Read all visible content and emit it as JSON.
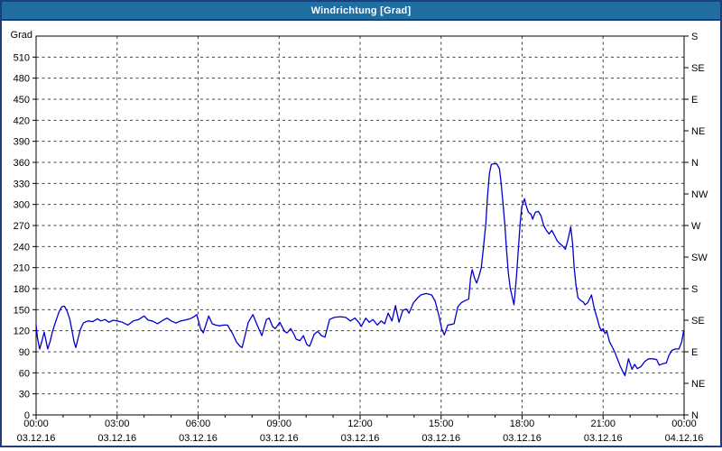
{
  "window": {
    "title": "Windrichtung [Grad]"
  },
  "colors": {
    "title_bar": "#1F6FA3",
    "window_border": "#1C3E7C",
    "line": "#0000CD",
    "grid": "#404040",
    "axis": "#000000",
    "title_text": "#FFFFFF",
    "label_text": "#000000",
    "background": "#FFFFFF"
  },
  "chart_data": {
    "type": "line",
    "title": "Windrichtung [Grad]",
    "grid": {
      "horizontal_step_deg": 30,
      "vertical_step_hours": 3,
      "style": "dashed"
    },
    "legend": "none",
    "y_axis": {
      "label": "Grad",
      "min": 0,
      "max": 540,
      "tick_step": 30,
      "tick_labels": [
        "0",
        "30",
        "60",
        "90",
        "120",
        "150",
        "180",
        "210",
        "240",
        "270",
        "300",
        "330",
        "360",
        "390",
        "420",
        "450",
        "480",
        "510"
      ]
    },
    "right_axis": {
      "tick_step_deg": 45,
      "ticks": [
        {
          "deg": 0,
          "label": "N"
        },
        {
          "deg": 45,
          "label": "NE"
        },
        {
          "deg": 90,
          "label": "E"
        },
        {
          "deg": 135,
          "label": "SE"
        },
        {
          "deg": 180,
          "label": "S"
        },
        {
          "deg": 225,
          "label": "SW"
        },
        {
          "deg": 270,
          "label": "W"
        },
        {
          "deg": 315,
          "label": "NW"
        },
        {
          "deg": 360,
          "label": "N"
        },
        {
          "deg": 405,
          "label": "NE"
        },
        {
          "deg": 450,
          "label": "E"
        },
        {
          "deg": 495,
          "label": "SE"
        },
        {
          "deg": 540,
          "label": "S"
        }
      ]
    },
    "x_axis": {
      "min_hour": 0,
      "max_hour": 24,
      "major_tick_hours": 3,
      "minor_tick_hours": 1,
      "tick_labels": [
        {
          "hour": 0,
          "time": "00:00",
          "date": "03.12.16"
        },
        {
          "hour": 3,
          "time": "03:00",
          "date": "03.12.16"
        },
        {
          "hour": 6,
          "time": "06:00",
          "date": "03.12.16"
        },
        {
          "hour": 9,
          "time": "09:00",
          "date": "03.12.16"
        },
        {
          "hour": 12,
          "time": "12:00",
          "date": "03.12.16"
        },
        {
          "hour": 15,
          "time": "15:00",
          "date": "03.12.16"
        },
        {
          "hour": 18,
          "time": "18:00",
          "date": "03.12.16"
        },
        {
          "hour": 21,
          "time": "21:00",
          "date": "03.12.16"
        },
        {
          "hour": 24,
          "time": "00:00",
          "date": "04.12.16"
        }
      ]
    },
    "series": [
      {
        "name": "Windrichtung",
        "unit": "Grad",
        "color": "#0000CD",
        "points": [
          [
            0.0,
            128
          ],
          [
            0.05,
            110
          ],
          [
            0.13,
            94
          ],
          [
            0.22,
            106
          ],
          [
            0.3,
            118
          ],
          [
            0.37,
            105
          ],
          [
            0.43,
            94
          ],
          [
            0.52,
            105
          ],
          [
            0.6,
            118
          ],
          [
            0.7,
            130
          ],
          [
            0.85,
            147
          ],
          [
            0.95,
            154
          ],
          [
            1.05,
            155
          ],
          [
            1.15,
            148
          ],
          [
            1.25,
            136
          ],
          [
            1.33,
            120
          ],
          [
            1.4,
            105
          ],
          [
            1.47,
            96
          ],
          [
            1.56,
            110
          ],
          [
            1.64,
            122
          ],
          [
            1.75,
            131
          ],
          [
            1.85,
            133
          ],
          [
            1.95,
            134
          ],
          [
            2.1,
            133
          ],
          [
            2.27,
            137
          ],
          [
            2.4,
            134
          ],
          [
            2.55,
            136
          ],
          [
            2.7,
            132
          ],
          [
            2.85,
            135
          ],
          [
            3.0,
            134
          ],
          [
            3.2,
            132
          ],
          [
            3.4,
            128
          ],
          [
            3.6,
            134
          ],
          [
            3.8,
            136
          ],
          [
            4.0,
            141
          ],
          [
            4.15,
            135
          ],
          [
            4.3,
            134
          ],
          [
            4.5,
            130
          ],
          [
            4.7,
            135
          ],
          [
            4.85,
            138
          ],
          [
            5.0,
            134
          ],
          [
            5.18,
            131
          ],
          [
            5.35,
            134
          ],
          [
            5.5,
            135
          ],
          [
            5.7,
            137
          ],
          [
            5.85,
            140
          ],
          [
            5.95,
            143
          ],
          [
            6.09,
            123
          ],
          [
            6.19,
            117
          ],
          [
            6.3,
            130
          ],
          [
            6.39,
            141
          ],
          [
            6.52,
            130
          ],
          [
            6.65,
            128
          ],
          [
            6.8,
            127
          ],
          [
            6.95,
            128
          ],
          [
            7.09,
            128
          ],
          [
            7.29,
            115
          ],
          [
            7.42,
            104
          ],
          [
            7.55,
            98
          ],
          [
            7.63,
            96
          ],
          [
            7.75,
            115
          ],
          [
            7.86,
            132
          ],
          [
            8.03,
            143
          ],
          [
            8.19,
            128
          ],
          [
            8.36,
            113
          ],
          [
            8.53,
            136
          ],
          [
            8.63,
            138
          ],
          [
            8.76,
            126
          ],
          [
            8.86,
            123
          ],
          [
            9.03,
            132
          ],
          [
            9.2,
            119
          ],
          [
            9.3,
            117
          ],
          [
            9.43,
            123
          ],
          [
            9.55,
            115
          ],
          [
            9.63,
            108
          ],
          [
            9.77,
            106
          ],
          [
            9.9,
            113
          ],
          [
            10.03,
            100
          ],
          [
            10.13,
            98
          ],
          [
            10.3,
            115
          ],
          [
            10.43,
            119
          ],
          [
            10.57,
            113
          ],
          [
            10.7,
            111
          ],
          [
            10.87,
            136
          ],
          [
            11.04,
            139
          ],
          [
            11.27,
            140
          ],
          [
            11.47,
            139
          ],
          [
            11.64,
            134
          ],
          [
            11.81,
            138
          ],
          [
            11.97,
            131
          ],
          [
            12.04,
            126
          ],
          [
            12.21,
            138
          ],
          [
            12.34,
            132
          ],
          [
            12.47,
            136
          ],
          [
            12.64,
            128
          ],
          [
            12.78,
            134
          ],
          [
            12.91,
            130
          ],
          [
            13.04,
            145
          ],
          [
            13.18,
            134
          ],
          [
            13.31,
            156
          ],
          [
            13.44,
            132
          ],
          [
            13.58,
            149
          ],
          [
            13.71,
            151
          ],
          [
            13.81,
            145
          ],
          [
            13.98,
            160
          ],
          [
            14.11,
            166
          ],
          [
            14.25,
            171
          ],
          [
            14.45,
            173
          ],
          [
            14.65,
            171
          ],
          [
            14.78,
            162
          ],
          [
            14.92,
            141
          ],
          [
            15.02,
            123
          ],
          [
            15.12,
            114
          ],
          [
            15.25,
            128
          ],
          [
            15.38,
            129
          ],
          [
            15.48,
            130
          ],
          [
            15.62,
            154
          ],
          [
            15.75,
            160
          ],
          [
            15.89,
            163
          ],
          [
            16.02,
            165
          ],
          [
            16.09,
            195
          ],
          [
            16.15,
            207
          ],
          [
            16.25,
            194
          ],
          [
            16.32,
            188
          ],
          [
            16.39,
            196
          ],
          [
            16.49,
            210
          ],
          [
            16.56,
            235
          ],
          [
            16.66,
            274
          ],
          [
            16.72,
            312
          ],
          [
            16.79,
            344
          ],
          [
            16.86,
            357
          ],
          [
            16.96,
            358
          ],
          [
            17.06,
            358
          ],
          [
            17.16,
            351
          ],
          [
            17.22,
            331
          ],
          [
            17.29,
            302
          ],
          [
            17.36,
            271
          ],
          [
            17.42,
            238
          ],
          [
            17.49,
            203
          ],
          [
            17.56,
            181
          ],
          [
            17.63,
            169
          ],
          [
            17.7,
            157
          ],
          [
            17.79,
            196
          ],
          [
            17.86,
            235
          ],
          [
            17.93,
            274
          ],
          [
            17.99,
            297
          ],
          [
            18.09,
            308
          ],
          [
            18.16,
            297
          ],
          [
            18.23,
            289
          ],
          [
            18.33,
            286
          ],
          [
            18.39,
            279
          ],
          [
            18.49,
            289
          ],
          [
            18.6,
            290
          ],
          [
            18.7,
            284
          ],
          [
            18.8,
            270
          ],
          [
            18.9,
            263
          ],
          [
            19.0,
            258
          ],
          [
            19.1,
            263
          ],
          [
            19.2,
            256
          ],
          [
            19.3,
            248
          ],
          [
            19.4,
            244
          ],
          [
            19.5,
            241
          ],
          [
            19.6,
            236
          ],
          [
            19.7,
            250
          ],
          [
            19.8,
            268
          ],
          [
            19.87,
            245
          ],
          [
            19.93,
            210
          ],
          [
            20.0,
            184
          ],
          [
            20.07,
            167
          ],
          [
            20.17,
            163
          ],
          [
            20.27,
            161
          ],
          [
            20.33,
            157
          ],
          [
            20.43,
            160
          ],
          [
            20.57,
            171
          ],
          [
            20.67,
            152
          ],
          [
            20.77,
            139
          ],
          [
            20.87,
            125
          ],
          [
            20.94,
            120
          ],
          [
            21.0,
            123
          ],
          [
            21.07,
            116
          ],
          [
            21.14,
            119
          ],
          [
            21.24,
            104
          ],
          [
            21.34,
            97
          ],
          [
            21.44,
            89
          ],
          [
            21.54,
            79
          ],
          [
            21.64,
            69
          ],
          [
            21.74,
            61
          ],
          [
            21.81,
            56
          ],
          [
            21.94,
            80
          ],
          [
            22.07,
            65
          ],
          [
            22.17,
            72
          ],
          [
            22.27,
            66
          ],
          [
            22.41,
            69
          ],
          [
            22.54,
            76
          ],
          [
            22.68,
            80
          ],
          [
            22.84,
            80
          ],
          [
            22.98,
            79
          ],
          [
            23.08,
            71
          ],
          [
            23.21,
            73
          ],
          [
            23.34,
            74
          ],
          [
            23.44,
            85
          ],
          [
            23.55,
            92
          ],
          [
            23.68,
            94
          ],
          [
            23.81,
            94
          ],
          [
            23.91,
            104
          ],
          [
            23.98,
            119
          ]
        ]
      }
    ]
  }
}
